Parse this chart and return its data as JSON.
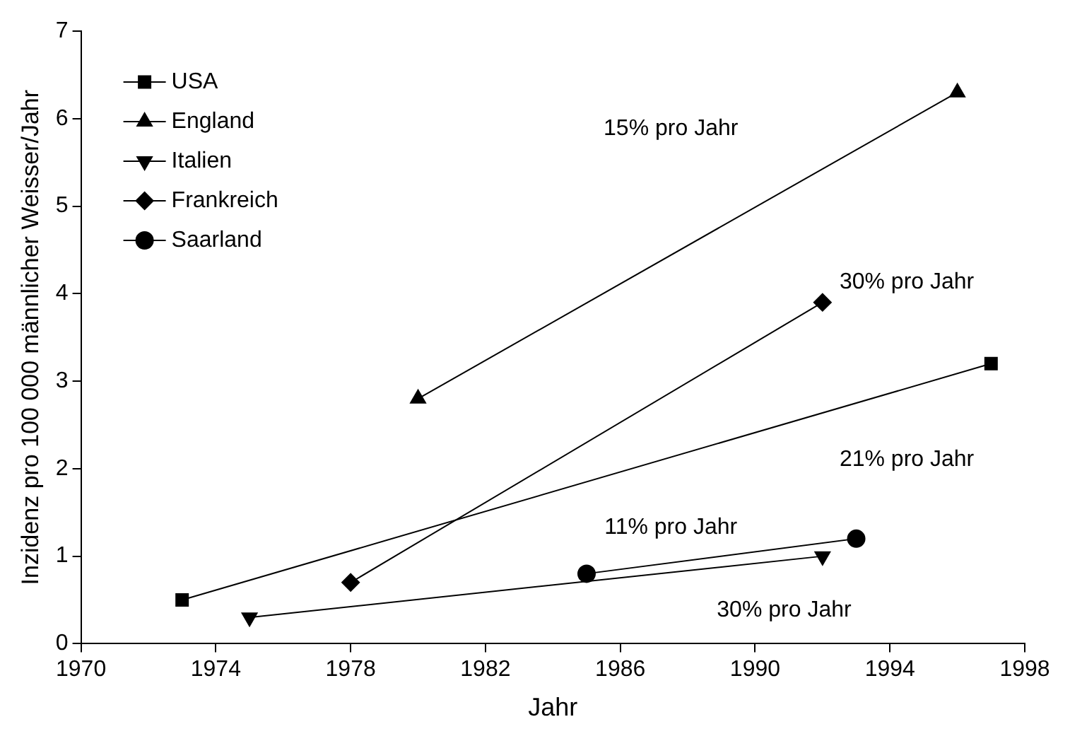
{
  "chart_data": {
    "type": "line",
    "xlabel": "Jahr",
    "ylabel": "Inzidenz pro 100 000 männlicher Weisser/Jahr",
    "xlim": [
      1970,
      1998
    ],
    "xticks": [
      1970,
      1974,
      1978,
      1982,
      1986,
      1990,
      1994,
      1998
    ],
    "ylim": [
      0,
      7
    ],
    "yticks": [
      0,
      1,
      2,
      3,
      4,
      5,
      6,
      7
    ],
    "grid": false,
    "legend": "top left",
    "line_style": "solid",
    "series": [
      {
        "name": "USA",
        "color": "#000000",
        "marker": "square",
        "x": [
          1973,
          1997
        ],
        "values": [
          0.5,
          3.2
        ]
      },
      {
        "name": "England",
        "color": "#000000",
        "marker": "triangle",
        "x": [
          1980,
          1996
        ],
        "values": [
          2.8,
          6.3
        ]
      },
      {
        "name": "Italien",
        "color": "#000000",
        "marker": "triangle-down",
        "x": [
          1975,
          1992
        ],
        "values": [
          0.3,
          1.0
        ]
      },
      {
        "name": "Frankreich",
        "color": "#000000",
        "marker": "diamond",
        "x": [
          1978,
          1992
        ],
        "values": [
          0.7,
          3.9
        ]
      },
      {
        "name": "Saarland",
        "color": "#000000",
        "marker": "circle",
        "x": [
          1985,
          1993
        ],
        "values": [
          0.8,
          1.2
        ]
      }
    ],
    "annotations": [
      "15% pro Jahr",
      "30% pro Jahr",
      "21% pro Jahr",
      "11% pro Jahr",
      "30% pro Jahr"
    ]
  }
}
